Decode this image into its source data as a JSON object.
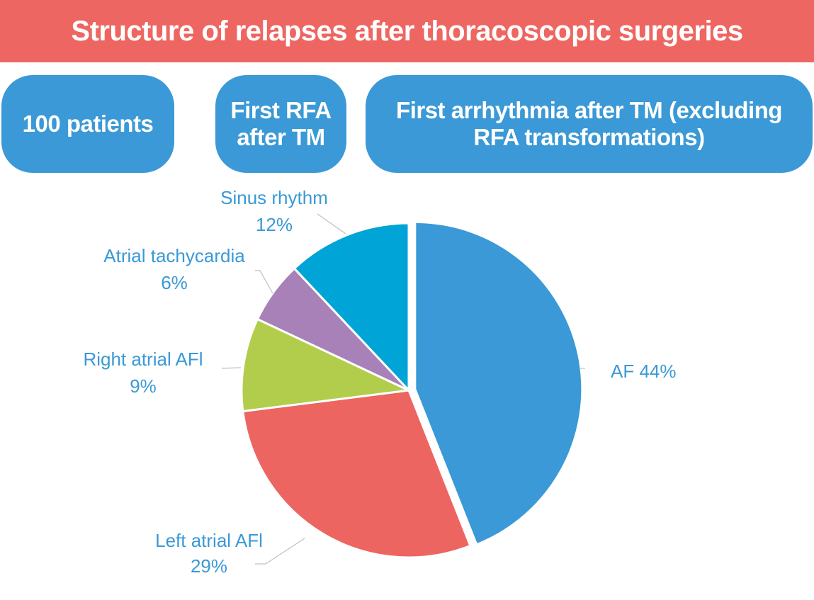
{
  "header": {
    "title": "Structure of relapses after thoracoscopic surgeries"
  },
  "boxes": [
    {
      "label": "100 patients"
    },
    {
      "label_lines": [
        "First RFA",
        "after TM"
      ]
    },
    {
      "label_lines": [
        "First arrhythmia after TM (excluding",
        "RFA transformations)"
      ]
    }
  ],
  "chart_data": {
    "type": "pie",
    "title": "",
    "slices": [
      {
        "name": "AF",
        "value": 44,
        "label": "AF 44%",
        "color": "#3a99d6",
        "exploded": true
      },
      {
        "name": "Left atrial AFl",
        "value": 29,
        "label_lines": [
          "Left atrial AFl",
          "29%"
        ],
        "color": "#ec6560"
      },
      {
        "name": "Right atrial AFl",
        "value": 9,
        "label_lines": [
          "Right atrial AFl",
          "9%"
        ],
        "color": "#b2cd4c"
      },
      {
        "name": "Atrial tachycardia",
        "value": 6,
        "label_lines": [
          "Atrial tachycardia",
          "6%"
        ],
        "color": "#a781b8"
      },
      {
        "name": "Sinus rhythm",
        "value": 12,
        "label_lines": [
          "Sinus rhythm",
          "12%"
        ],
        "color": "#00a4d6"
      }
    ],
    "start_angle_deg": 0,
    "direction": "clockwise"
  }
}
